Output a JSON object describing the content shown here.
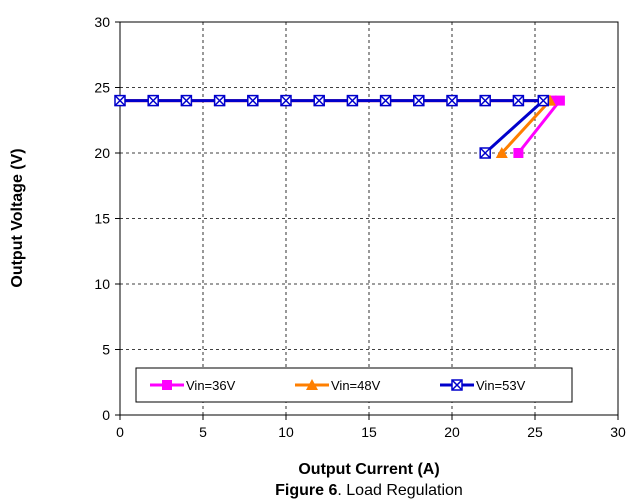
{
  "chart_data": {
    "type": "line",
    "xlabel": "Output Current (A)",
    "ylabel": "Output Voltage (V)",
    "xlim": [
      0,
      30
    ],
    "ylim": [
      0,
      30
    ],
    "xticks": [
      0,
      5,
      10,
      15,
      20,
      25,
      30
    ],
    "yticks": [
      0,
      5,
      10,
      15,
      20,
      25,
      30
    ],
    "grid": true,
    "legend_position": "bottom-center",
    "series": [
      {
        "name": "Vin=36V",
        "color": "#ff00ff",
        "marker": "square",
        "points": [
          [
            0,
            24
          ],
          [
            2,
            24
          ],
          [
            4,
            24
          ],
          [
            6,
            24
          ],
          [
            8,
            24
          ],
          [
            10,
            24
          ],
          [
            12,
            24
          ],
          [
            14,
            24
          ],
          [
            16,
            24
          ],
          [
            18,
            24
          ],
          [
            20,
            24
          ],
          [
            22,
            24
          ],
          [
            24,
            24
          ],
          [
            26,
            24
          ],
          [
            26.5,
            24
          ],
          [
            24,
            20
          ]
        ]
      },
      {
        "name": "Vin=48V",
        "color": "#ff7f00",
        "marker": "triangle",
        "points": [
          [
            0,
            24
          ],
          [
            2,
            24
          ],
          [
            4,
            24
          ],
          [
            6,
            24
          ],
          [
            8,
            24
          ],
          [
            10,
            24
          ],
          [
            12,
            24
          ],
          [
            14,
            24
          ],
          [
            16,
            24
          ],
          [
            18,
            24
          ],
          [
            20,
            24
          ],
          [
            22,
            24
          ],
          [
            24,
            24
          ],
          [
            25.9,
            24
          ],
          [
            23,
            20
          ]
        ]
      },
      {
        "name": "Vin=53V",
        "color": "#0000cc",
        "marker": "x-square",
        "points": [
          [
            0,
            24
          ],
          [
            2,
            24
          ],
          [
            4,
            24
          ],
          [
            6,
            24
          ],
          [
            8,
            24
          ],
          [
            10,
            24
          ],
          [
            12,
            24
          ],
          [
            14,
            24
          ],
          [
            16,
            24
          ],
          [
            18,
            24
          ],
          [
            20,
            24
          ],
          [
            22,
            24
          ],
          [
            24,
            24
          ],
          [
            25.5,
            24
          ],
          [
            22,
            20
          ]
        ]
      }
    ]
  },
  "caption": {
    "prefix": "Figure 6",
    "text": ". Load Regulation"
  }
}
